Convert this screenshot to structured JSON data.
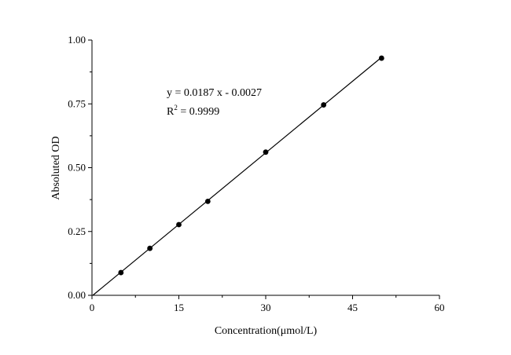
{
  "chart_data": {
    "type": "scatter",
    "xlabel": "Concentration(μmol/L)",
    "ylabel": "Absoluted OD",
    "xlim": [
      0,
      60
    ],
    "ylim": [
      0,
      1.0
    ],
    "xticks": [
      0,
      15,
      30,
      45,
      60
    ],
    "xtick_labels": [
      "0",
      "15",
      "30",
      "45",
      "60"
    ],
    "yticks": [
      0,
      0.25,
      0.5,
      0.75,
      1.0
    ],
    "ytick_labels": [
      "0.00",
      "0.25",
      "0.50",
      "0.75",
      "1.00"
    ],
    "grid": false,
    "series": [
      {
        "x": [
          5,
          10,
          15,
          20,
          30,
          40,
          50
        ],
        "y": [
          0.089,
          0.184,
          0.277,
          0.368,
          0.561,
          0.746,
          0.929
        ],
        "color": "#000000"
      }
    ],
    "fit": {
      "slope": 0.0187,
      "intercept": -0.0027,
      "x_range": [
        0,
        50
      ]
    },
    "annotations": {
      "equation": "y = 0.0187 x - 0.0027",
      "r2_prefix": "R",
      "r2_sup": "2",
      "r2_value": " = 0.9999"
    }
  }
}
